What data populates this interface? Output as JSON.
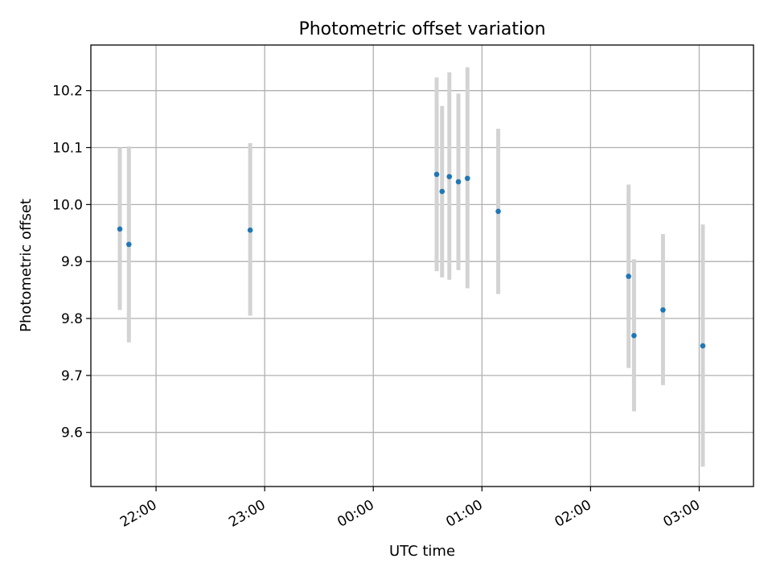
{
  "chart_data": {
    "type": "scatter",
    "title": "Photometric offset variation",
    "xlabel": "UTC time",
    "ylabel": "Photometric offset",
    "xlim": [
      "21:24",
      "03:30"
    ],
    "ylim": [
      9.505,
      10.28
    ],
    "grid": true,
    "x_ticks": [
      "22:00",
      "23:00",
      "00:00",
      "01:00",
      "02:00",
      "03:00"
    ],
    "y_ticks": [
      "9.6",
      "9.7",
      "9.8",
      "9.9",
      "10.0",
      "10.1",
      "10.2"
    ],
    "colors": {
      "points": "#1f77b4",
      "errorbars": "#d3d3d3",
      "grid": "#b0b0b0"
    },
    "points": [
      {
        "x": "21:40",
        "y": 9.957,
        "ylow": 9.815,
        "yhigh": 10.1
      },
      {
        "x": "21:45",
        "y": 9.93,
        "ylow": 9.758,
        "yhigh": 10.102
      },
      {
        "x": "22:52",
        "y": 9.955,
        "ylow": 9.805,
        "yhigh": 10.108
      },
      {
        "x": "00:35",
        "y": 10.053,
        "ylow": 9.883,
        "yhigh": 10.223
      },
      {
        "x": "00:38",
        "y": 10.023,
        "ylow": 9.872,
        "yhigh": 10.173
      },
      {
        "x": "00:42",
        "y": 10.049,
        "ylow": 9.868,
        "yhigh": 10.232
      },
      {
        "x": "00:47",
        "y": 10.04,
        "ylow": 9.885,
        "yhigh": 10.195
      },
      {
        "x": "00:52",
        "y": 10.046,
        "ylow": 9.853,
        "yhigh": 10.241
      },
      {
        "x": "01:09",
        "y": 9.988,
        "ylow": 9.843,
        "yhigh": 10.133
      },
      {
        "x": "02:21",
        "y": 9.874,
        "ylow": 9.713,
        "yhigh": 10.035
      },
      {
        "x": "02:24",
        "y": 9.77,
        "ylow": 9.637,
        "yhigh": 9.904
      },
      {
        "x": "02:40",
        "y": 9.815,
        "ylow": 9.683,
        "yhigh": 9.948
      },
      {
        "x": "03:02",
        "y": 9.752,
        "ylow": 9.54,
        "yhigh": 9.965
      }
    ]
  }
}
